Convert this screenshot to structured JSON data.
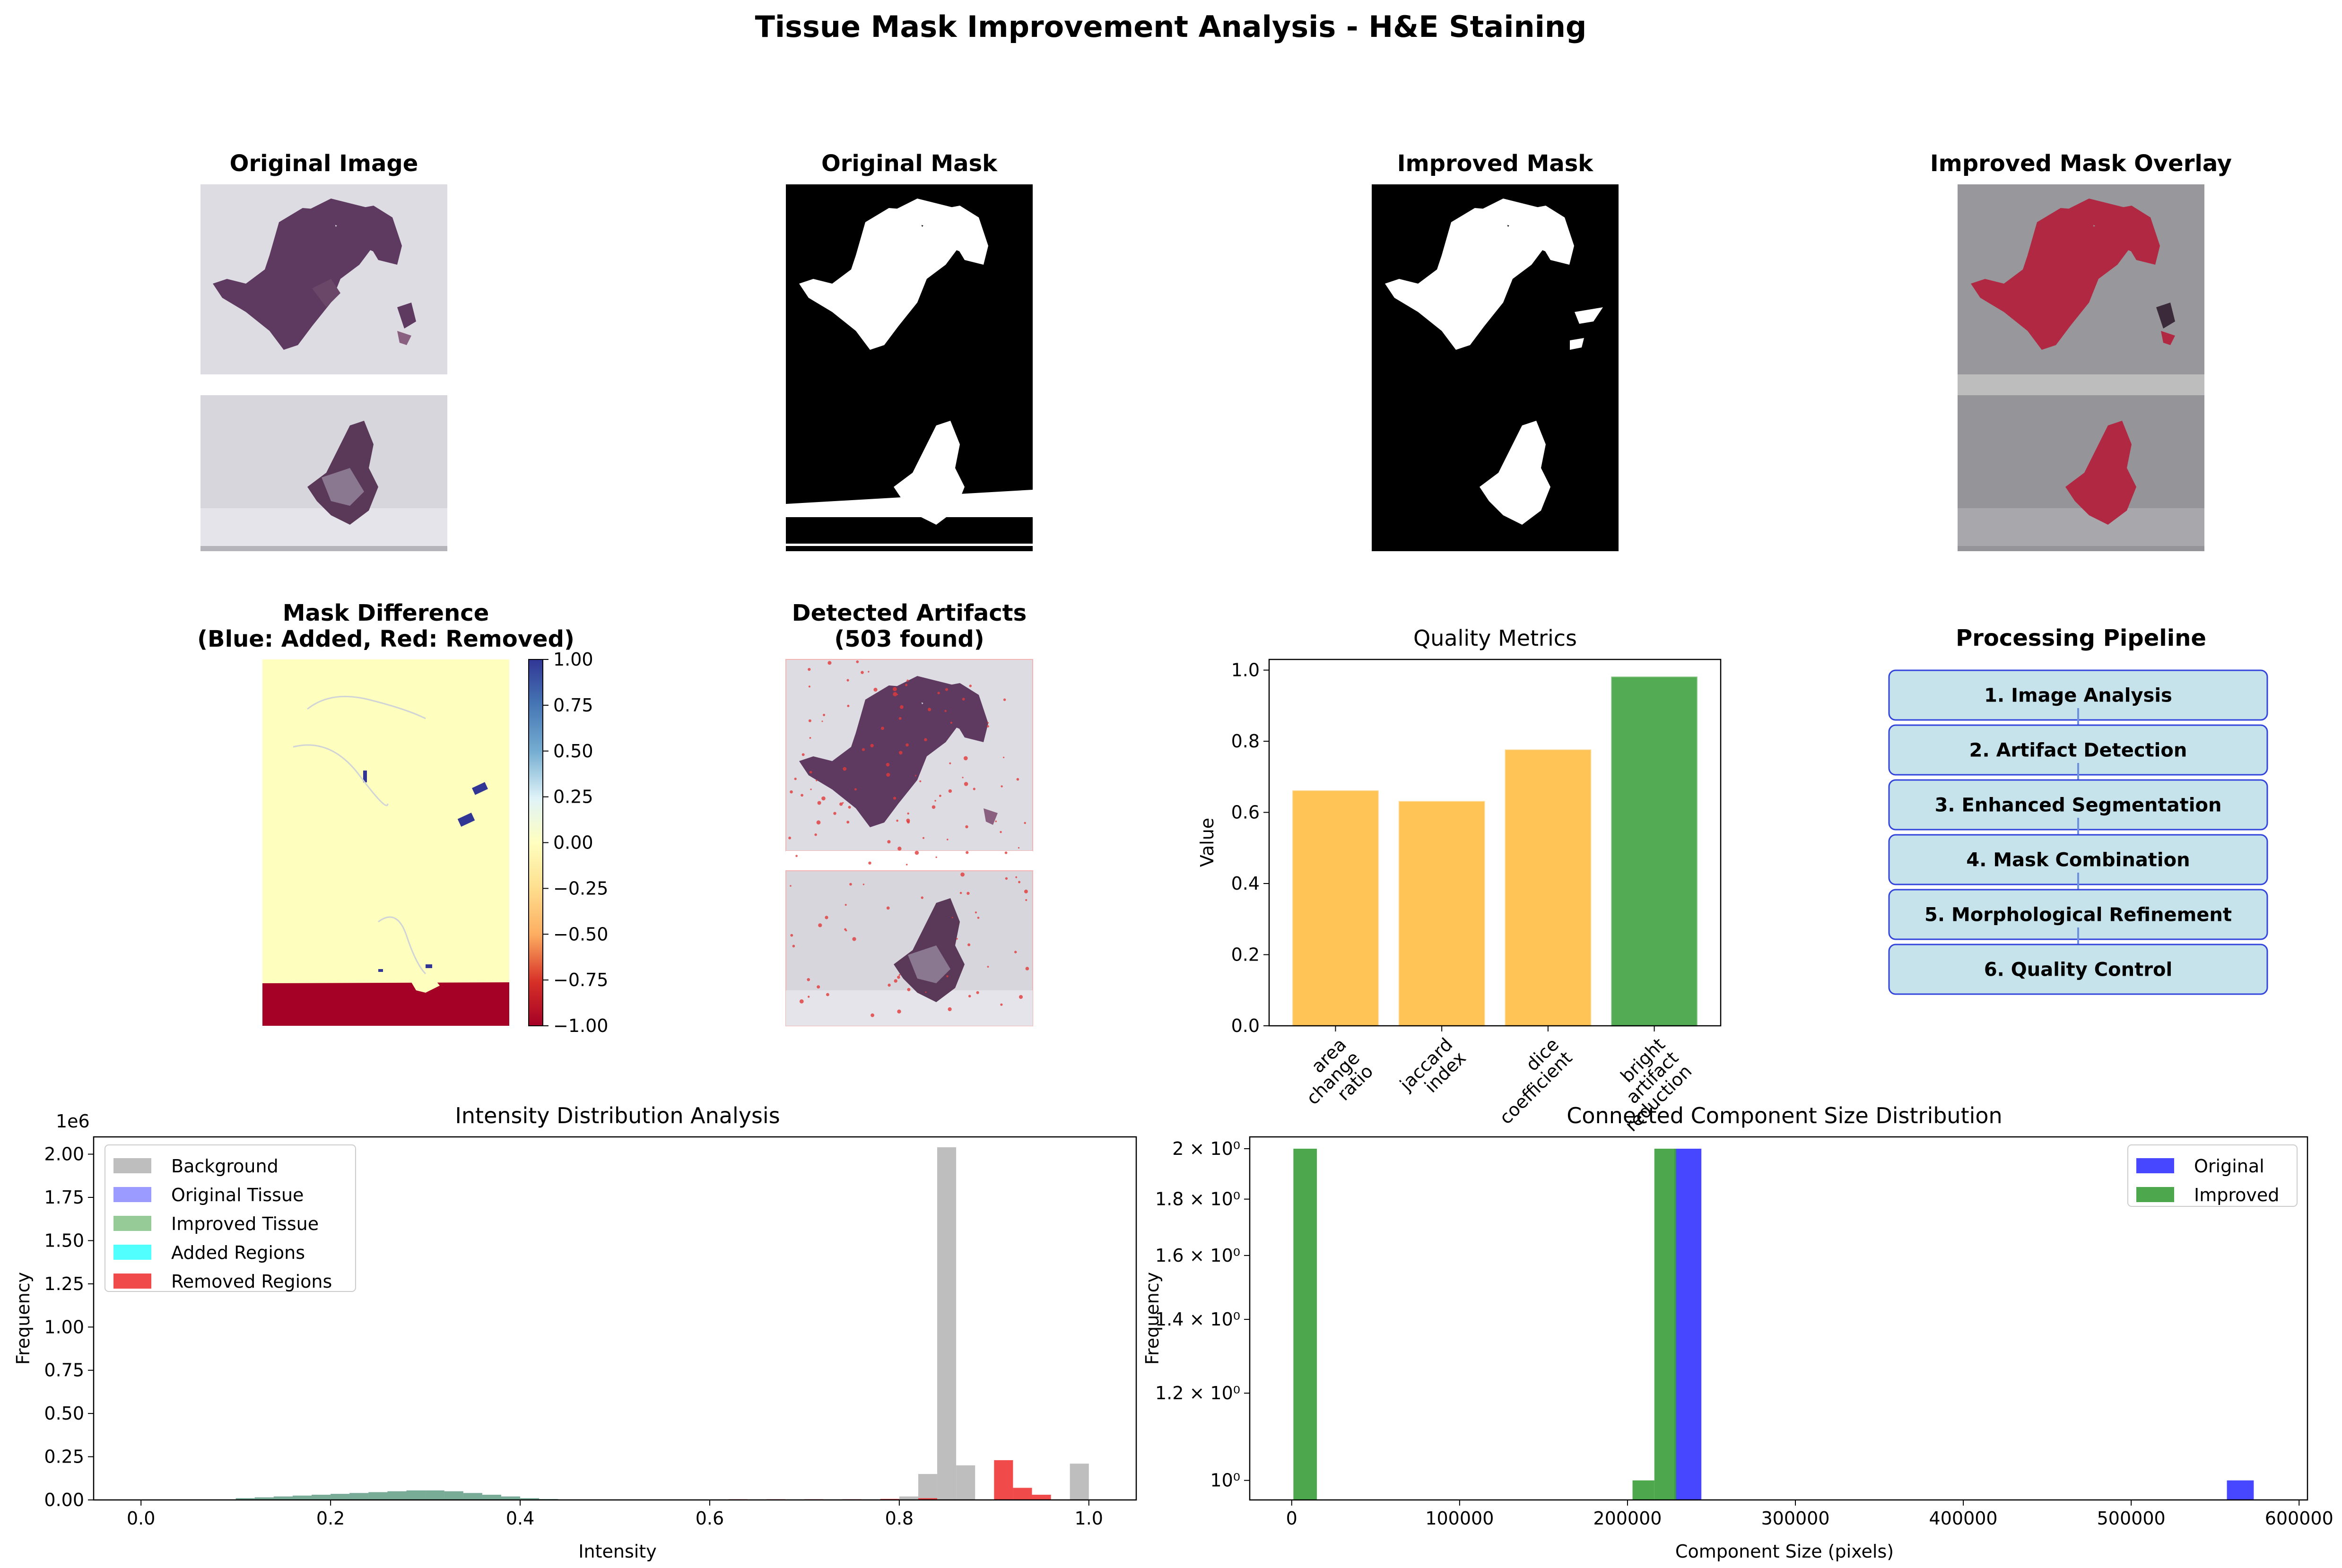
{
  "figure": {
    "title": "Tissue Mask Improvement Analysis - H&E Staining"
  },
  "panels": {
    "original_image": {
      "title": "Original Image"
    },
    "original_mask": {
      "title": "Original Mask"
    },
    "improved_mask": {
      "title": "Improved Mask"
    },
    "overlay": {
      "title": "Improved Mask Overlay"
    },
    "mask_difference": {
      "title_line1": "Mask Difference",
      "title_line2": "(Blue: Added, Red: Removed)",
      "colorbar_ticks": [
        "1.00",
        "0.75",
        "0.50",
        "0.25",
        "0.00",
        "−0.25",
        "−0.50",
        "−0.75",
        "−1.00"
      ],
      "colormap": "RdYlBu"
    },
    "artifacts": {
      "title_line1": "Detected Artifacts",
      "title_line2": "(503 found)"
    },
    "pipeline": {
      "title": "Processing Pipeline",
      "steps": [
        "1. Image Analysis",
        "2. Artifact Detection",
        "3. Enhanced Segmentation",
        "4. Mask Combination",
        "5. Morphological Refinement",
        "6. Quality Control"
      ],
      "box_color": "#c6e2ea",
      "edge_color": "#3344dd"
    }
  },
  "chart_data": [
    {
      "id": "quality_metrics",
      "type": "bar",
      "title": "Quality Metrics",
      "xlabel": "",
      "ylabel": "Value",
      "categories": [
        "area\nchange\nratio",
        "jaccard\nindex",
        "dice\ncoefficient",
        "bright\nartifact\nreduction"
      ],
      "values": [
        0.66,
        0.63,
        0.775,
        0.98
      ],
      "colors": [
        "#ffc04d",
        "#ffc04d",
        "#ffc04d",
        "#4aa84a"
      ],
      "ylim": [
        0,
        1.03
      ],
      "yticks": [
        "0.0",
        "0.2",
        "0.4",
        "0.6",
        "0.8",
        "1.0"
      ],
      "grid": false
    },
    {
      "id": "intensity_distribution",
      "type": "bar",
      "title": "Intensity Distribution Analysis",
      "xlabel": "Intensity",
      "ylabel": "Frequency",
      "scale_label": "1e6",
      "xlim": [
        -0.05,
        1.05
      ],
      "ylim": [
        0,
        2.1
      ],
      "xticks": [
        "0.0",
        "0.2",
        "0.4",
        "0.6",
        "0.8",
        "1.0"
      ],
      "yticks": [
        "0.00",
        "0.25",
        "0.50",
        "0.75",
        "1.00",
        "1.25",
        "1.50",
        "1.75",
        "2.00"
      ],
      "legend_position": "upper-left",
      "series": [
        {
          "name": "Background",
          "color": "#b3b3b3",
          "opacity": 0.85,
          "bins": [
            [
              0.8,
              0.02
            ],
            [
              0.82,
              0.15
            ],
            [
              0.84,
              2.04
            ],
            [
              0.86,
              0.2
            ],
            [
              0.98,
              0.21
            ]
          ]
        },
        {
          "name": "Original Tissue",
          "color": "#7070ff",
          "opacity": 0.7,
          "bins": [
            [
              0.1,
              0.01
            ],
            [
              0.12,
              0.015
            ],
            [
              0.14,
              0.02
            ],
            [
              0.16,
              0.025
            ],
            [
              0.18,
              0.03
            ],
            [
              0.2,
              0.035
            ],
            [
              0.22,
              0.04
            ],
            [
              0.24,
              0.045
            ],
            [
              0.26,
              0.05
            ],
            [
              0.28,
              0.055
            ],
            [
              0.3,
              0.055
            ],
            [
              0.32,
              0.05
            ],
            [
              0.34,
              0.04
            ],
            [
              0.36,
              0.03
            ],
            [
              0.38,
              0.02
            ],
            [
              0.4,
              0.01
            ],
            [
              0.42,
              0.005
            ]
          ]
        },
        {
          "name": "Improved Tissue",
          "color": "#6ab36a",
          "opacity": 0.7,
          "bins": [
            [
              0.1,
              0.01
            ],
            [
              0.12,
              0.015
            ],
            [
              0.14,
              0.02
            ],
            [
              0.16,
              0.025
            ],
            [
              0.18,
              0.03
            ],
            [
              0.2,
              0.035
            ],
            [
              0.22,
              0.04
            ],
            [
              0.24,
              0.045
            ],
            [
              0.26,
              0.05
            ],
            [
              0.28,
              0.055
            ],
            [
              0.3,
              0.055
            ],
            [
              0.32,
              0.05
            ],
            [
              0.34,
              0.04
            ],
            [
              0.36,
              0.03
            ],
            [
              0.38,
              0.02
            ],
            [
              0.4,
              0.01
            ],
            [
              0.42,
              0.005
            ]
          ]
        },
        {
          "name": "Added Regions",
          "color": "#33ffff",
          "opacity": 0.85,
          "bins": []
        },
        {
          "name": "Removed Regions",
          "color": "#ee2a2a",
          "opacity": 0.85,
          "bins": [
            [
              0.62,
              0.004
            ],
            [
              0.66,
              0.004
            ],
            [
              0.7,
              0.004
            ],
            [
              0.74,
              0.004
            ],
            [
              0.78,
              0.006
            ],
            [
              0.82,
              0.01
            ],
            [
              0.9,
              0.23
            ],
            [
              0.92,
              0.07
            ],
            [
              0.94,
              0.03
            ]
          ]
        }
      ]
    },
    {
      "id": "component_sizes",
      "type": "bar",
      "title": "Connected Component Size Distribution",
      "xlabel": "Component Size (pixels)",
      "ylabel": "Frequency",
      "y_scale": "log",
      "xlim": [
        -25000,
        605000
      ],
      "ylim": [
        0.96,
        2.05
      ],
      "xticks": [
        0,
        100000,
        200000,
        300000,
        400000,
        500000,
        600000
      ],
      "yticks": [
        1.0,
        1.2,
        1.4,
        1.6,
        1.8,
        2.0
      ],
      "ytick_labels": [
        "10⁰",
        "1.2 × 10⁰",
        "1.4 × 10⁰",
        "1.6 × 10⁰",
        "1.8 × 10⁰",
        "2 × 10⁰"
      ],
      "legend_position": "upper-right",
      "series": [
        {
          "name": "Original",
          "color": "#3333ff",
          "opacity": 0.9,
          "bins": [
            [
              228000,
              244000,
              2
            ],
            [
              557000,
              573000,
              1
            ]
          ]
        },
        {
          "name": "Improved",
          "color": "#3a9e3a",
          "opacity": 0.9,
          "bins": [
            [
              1000,
              15000,
              2
            ],
            [
              203000,
              216000,
              1
            ],
            [
              216000,
              229000,
              2
            ]
          ]
        }
      ]
    }
  ]
}
